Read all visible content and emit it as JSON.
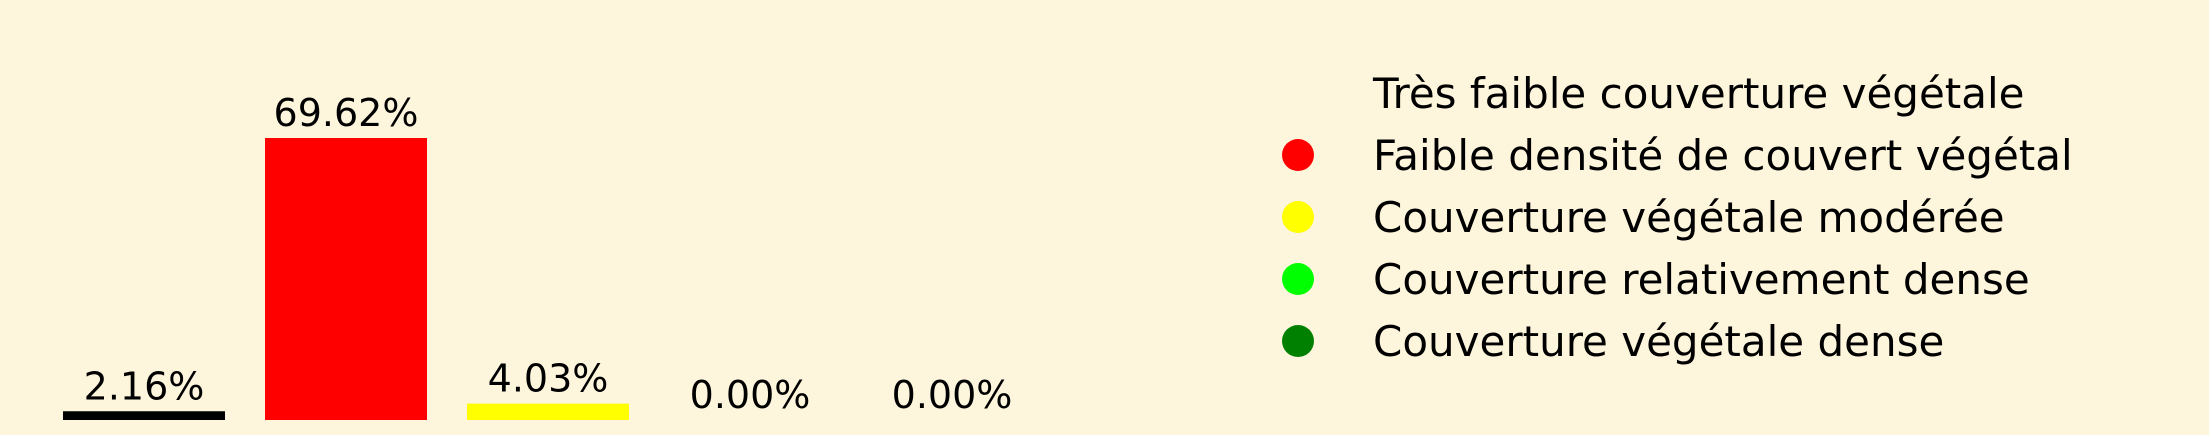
{
  "chart_data": {
    "type": "bar",
    "categories": [
      "Très faible couverture végétale",
      "Faible densité de couvert végétal",
      "Couverture végétale modérée",
      "Couverture relativement dense",
      "Couverture végétale dense"
    ],
    "values": [
      2.16,
      69.62,
      4.03,
      0.0,
      0.0
    ],
    "value_labels": [
      "2.16%",
      "69.62%",
      "4.03%",
      "0.00%",
      "0.00%"
    ],
    "colors": [
      "#000000",
      "#ff0000",
      "#ffff00",
      "#00ff00",
      "#008000"
    ],
    "ylim": [
      0,
      100
    ],
    "legend_position": "right",
    "grid": false,
    "title": "",
    "xlabel": "",
    "ylabel": ""
  },
  "background_color": "#fdf5dc"
}
